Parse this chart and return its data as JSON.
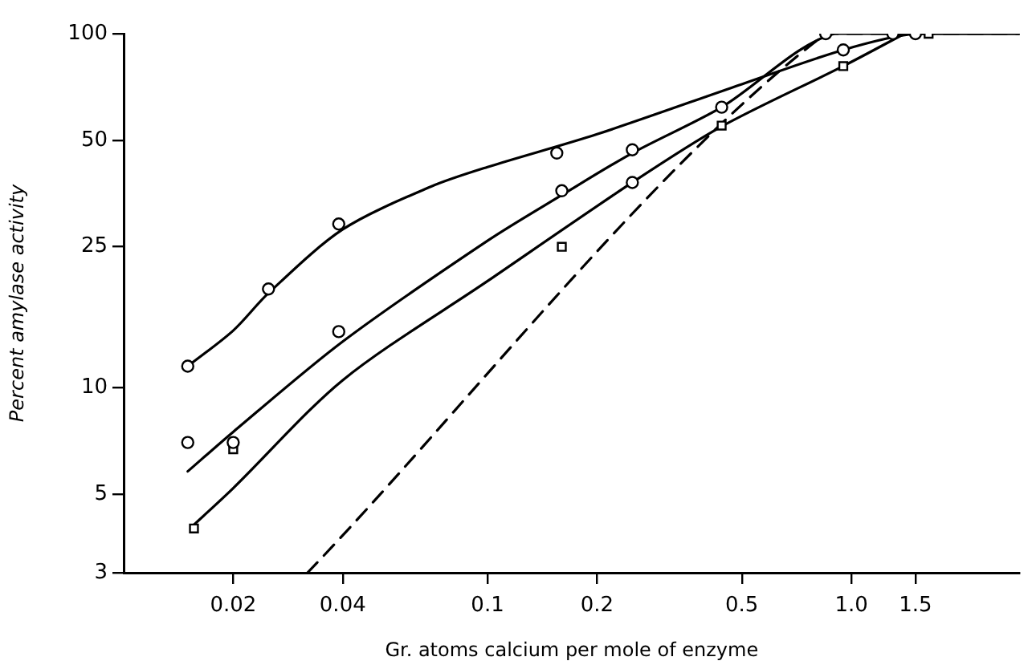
{
  "chart_data": {
    "type": "scatter",
    "xlabel": "Gr. atoms calcium per mole of enzyme",
    "ylabel": "Percent amylase activity",
    "log": "xy",
    "grid": false,
    "legend": false,
    "xlim": [
      0.01,
      2.9
    ],
    "xticks": [
      0.02,
      0.04,
      0.1,
      0.2,
      0.5,
      {
        "value": 1,
        "label": "1.0"
      },
      1.5
    ],
    "ylim": [
      3,
      100
    ],
    "yticks": [
      3,
      5,
      10,
      25,
      50,
      100
    ],
    "series": [
      {
        "color": "#000000",
        "marker": "circle",
        "x": [
          0.015,
          0.025,
          0.039,
          0.155,
          0.25,
          0.95,
          1.5
        ],
        "values": [
          11.5,
          19,
          29,
          46,
          47,
          90,
          100
        ]
      },
      {
        "color": "#000000",
        "marker": "circle",
        "x": [
          0.015,
          0.02,
          0.039,
          0.16,
          0.25,
          0.44,
          0.85,
          1.3
        ],
        "values": [
          7,
          7,
          14.4,
          36,
          38,
          62,
          100,
          100
        ]
      },
      {
        "color": "#000000",
        "marker": "square",
        "x": [
          0.0156,
          0.02,
          0.16,
          0.44,
          0.95,
          1.63
        ],
        "values": [
          4,
          6.7,
          25,
          55,
          81,
          100
        ]
      },
      {
        "type": "line",
        "color": "#000000",
        "marker": "none",
        "line_style": "solid",
        "x": [
          0.015,
          0.02,
          0.025,
          0.04,
          0.07,
          0.1,
          0.2,
          0.5,
          0.95,
          1.5,
          2.9
        ],
        "values": [
          11.5,
          14.5,
          18.5,
          28,
          37,
          42,
          52,
          72,
          90,
          100,
          100
        ]
      },
      {
        "type": "line",
        "color": "#000000",
        "marker": "none",
        "line_style": "solid",
        "x": [
          0.015,
          0.02,
          0.04,
          0.1,
          0.16,
          0.25,
          0.44,
          0.9,
          2.9
        ],
        "values": [
          5.8,
          7.5,
          13.5,
          26,
          35,
          46,
          62,
          100,
          100
        ]
      },
      {
        "type": "line",
        "color": "#000000",
        "marker": "none",
        "line_style": "solid",
        "x": [
          0.0156,
          0.02,
          0.04,
          0.1,
          0.25,
          0.44,
          0.95,
          1.4
        ],
        "values": [
          4.1,
          5.2,
          10.5,
          20,
          38,
          54.7,
          81,
          100
        ]
      },
      {
        "type": "line",
        "color": "#000000",
        "marker": "none",
        "line_style": "dashed",
        "x": [
          0.032,
          0.85,
          2.9
        ],
        "values": [
          3,
          100,
          100
        ]
      }
    ]
  }
}
